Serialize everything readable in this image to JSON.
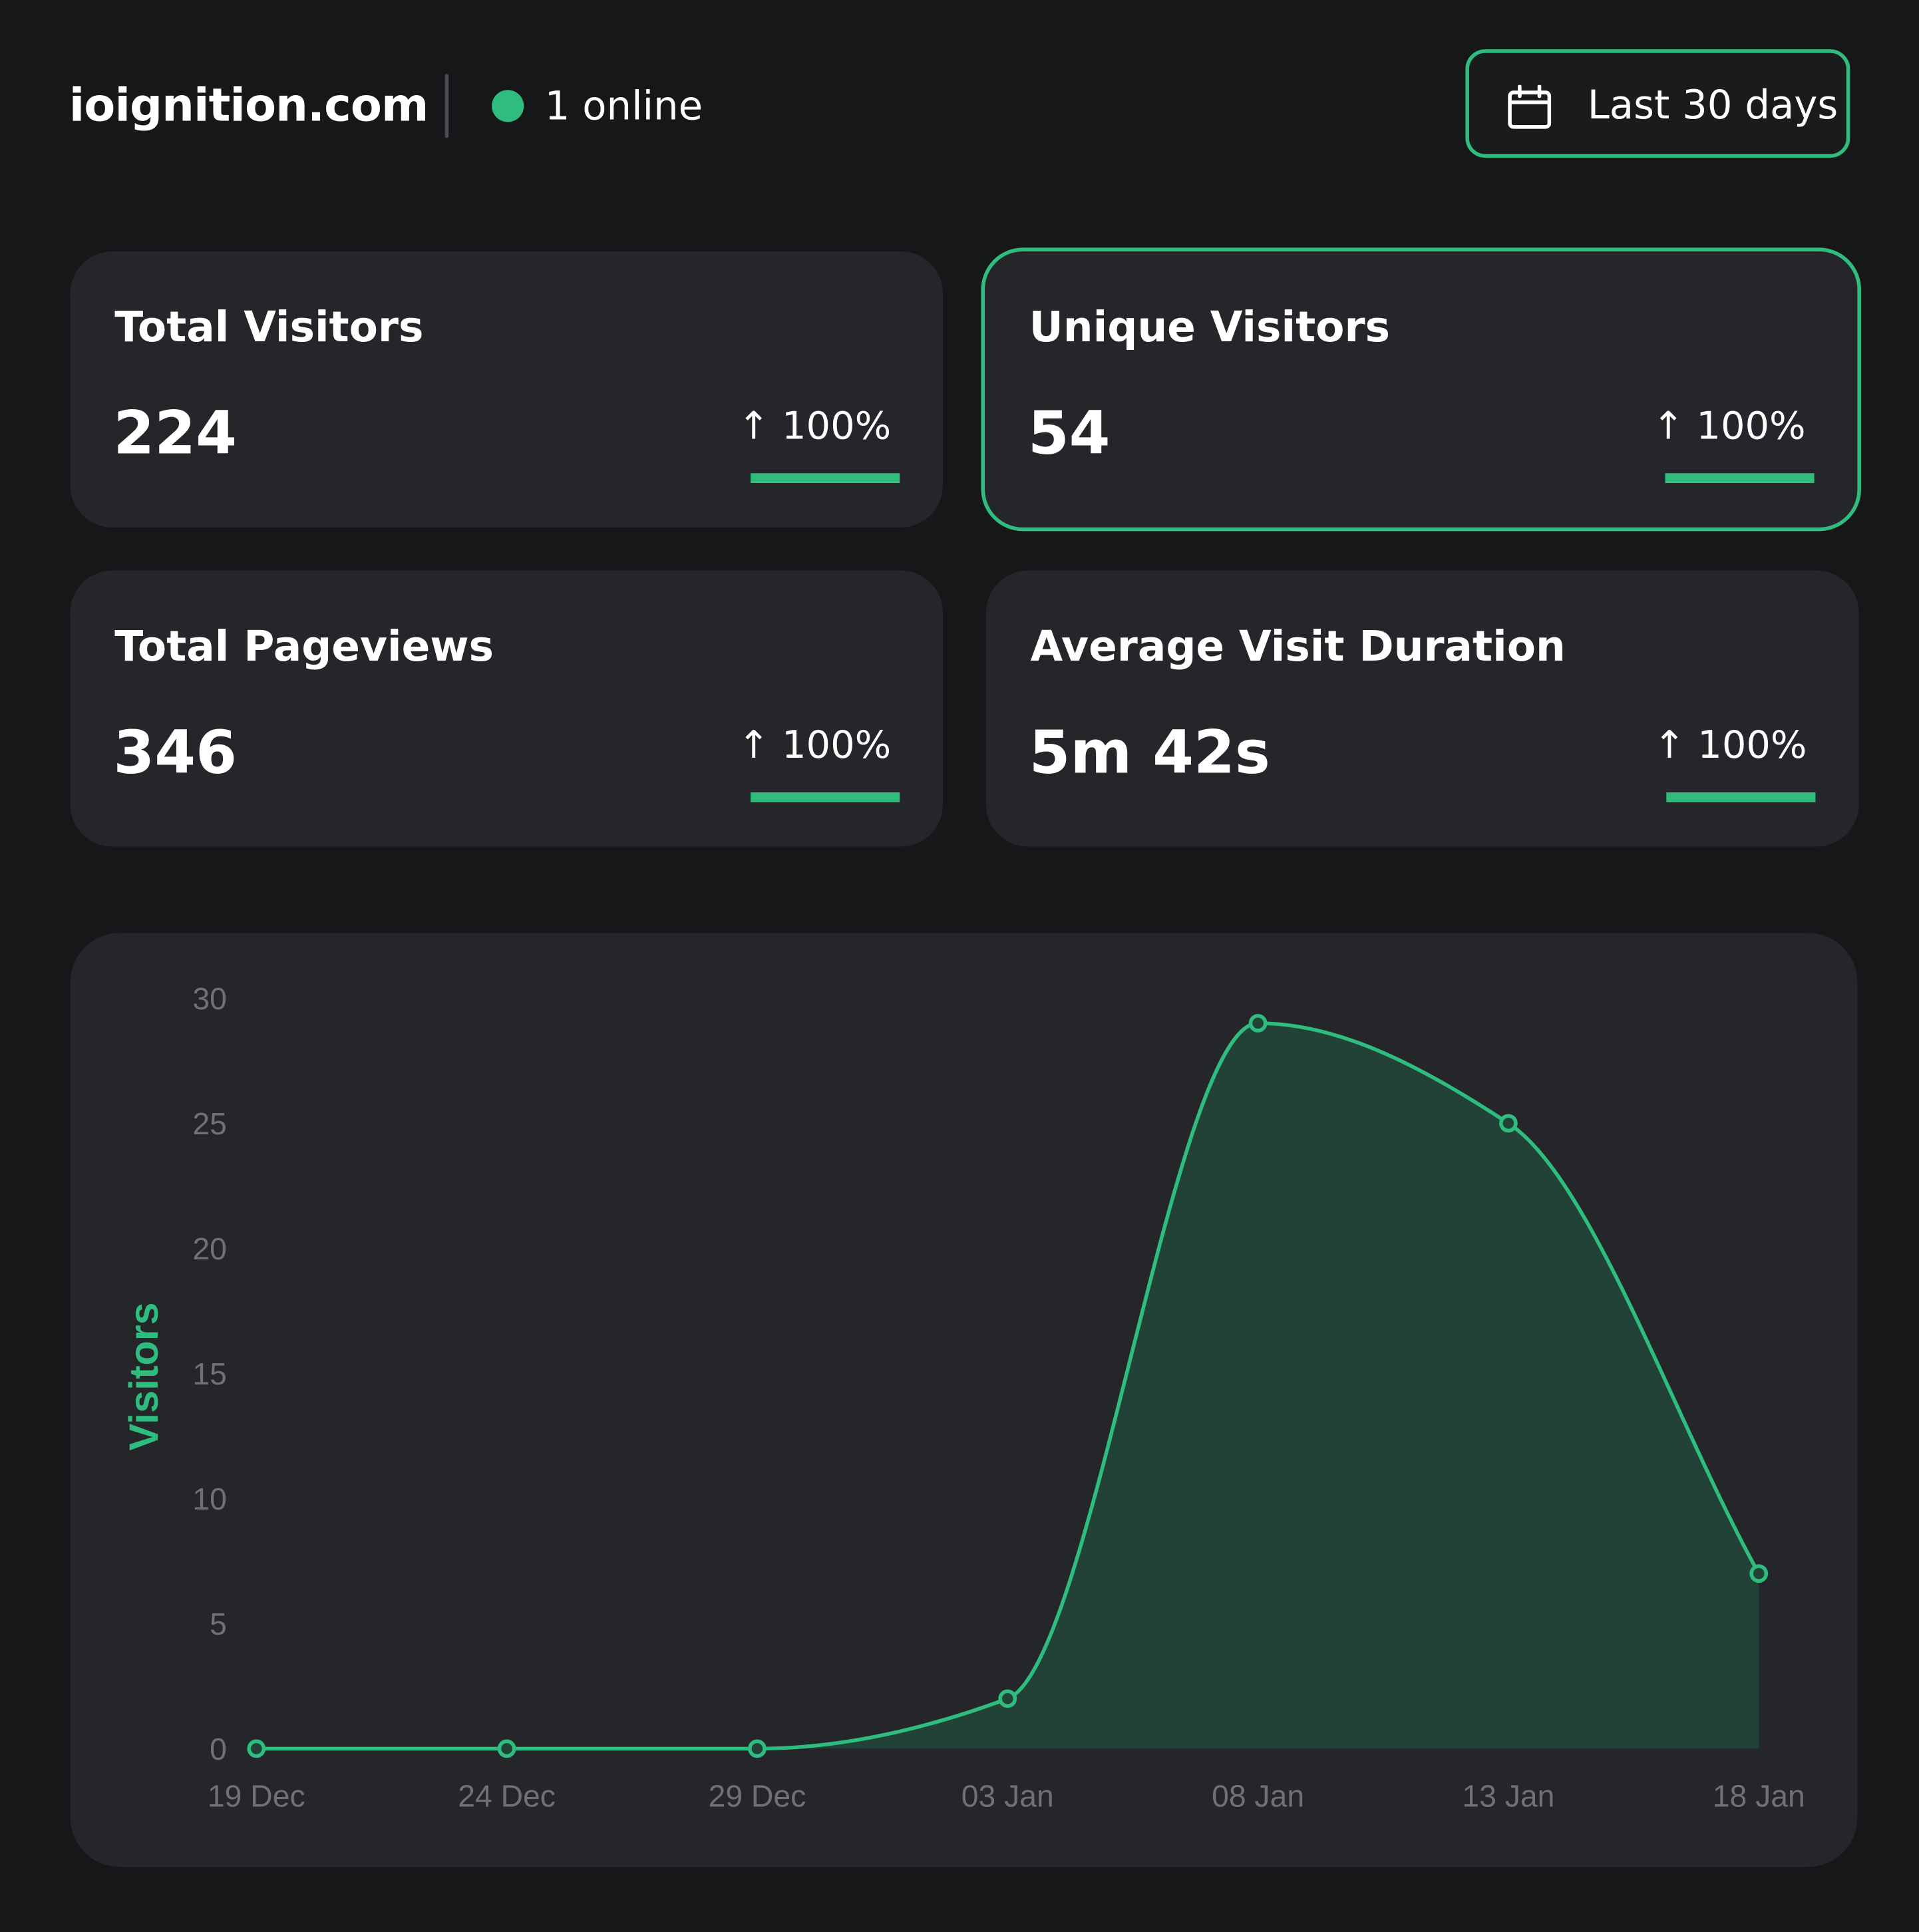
{
  "header": {
    "site_name": "ioignition.com",
    "online_count": "1 online",
    "date_range_label": "Last 30 days"
  },
  "colors": {
    "accent": "#2ebc7f",
    "background": "#161719",
    "card": "#25262a",
    "area_fill": "#224238"
  },
  "stats": [
    {
      "title": "Total Visitors",
      "value": "224",
      "change": "↑ 100%",
      "active": false
    },
    {
      "title": "Unique Visitors",
      "value": "54",
      "change": "↑ 100%",
      "active": true
    },
    {
      "title": "Total Pageviews",
      "value": "346",
      "change": "↑ 100%",
      "active": false
    },
    {
      "title": "Average Visit Duration",
      "value": "5m 42s",
      "change": "↑ 100%",
      "active": false
    }
  ],
  "chart_data": {
    "type": "area",
    "ylabel": "Visitors",
    "xlabel": "",
    "title": "",
    "ylim": [
      0,
      30
    ],
    "y_ticks": [
      "0",
      "5",
      "10",
      "15",
      "20",
      "25",
      "30"
    ],
    "x": [
      "19 Dec",
      "24 Dec",
      "29 Dec",
      "03 Jan",
      "08 Jan",
      "13 Jan",
      "18 Jan"
    ],
    "series": [
      {
        "values": [
          0,
          0,
          0,
          2,
          29,
          25,
          7
        ]
      }
    ],
    "grid": false,
    "legend": "none"
  }
}
